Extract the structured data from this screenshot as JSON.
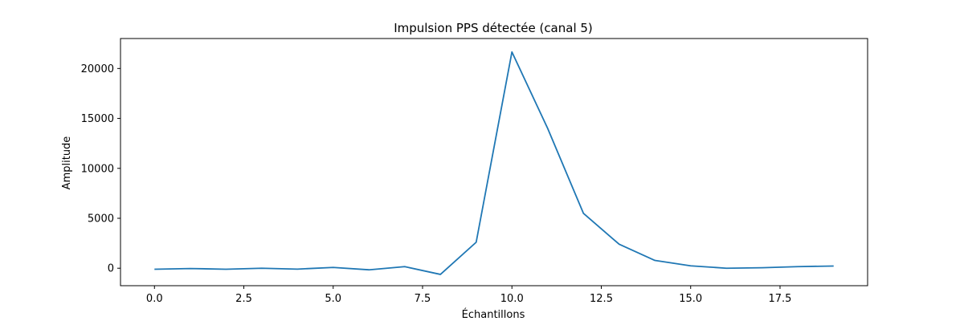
{
  "chart_data": {
    "type": "line",
    "title": "Impulsion PPS détectée (canal 5)",
    "xlabel": "Échantillons",
    "ylabel": "Amplitude",
    "xlim": [
      -0.95,
      19.95
    ],
    "ylim": [
      -1750,
      23000
    ],
    "xticks": [
      0.0,
      2.5,
      5.0,
      7.5,
      10.0,
      12.5,
      15.0,
      17.5
    ],
    "xtick_labels": [
      "0.0",
      "2.5",
      "5.0",
      "7.5",
      "10.0",
      "12.5",
      "15.0",
      "17.5"
    ],
    "yticks": [
      0,
      5000,
      10000,
      15000,
      20000
    ],
    "ytick_labels": [
      "0",
      "5000",
      "10000",
      "15000",
      "20000"
    ],
    "grid": false,
    "series": [
      {
        "color": "#1f77b4",
        "x": [
          0,
          1,
          2,
          3,
          4,
          5,
          6,
          7,
          8,
          9,
          10,
          11,
          12,
          13,
          14,
          15,
          16,
          17,
          18,
          19
        ],
        "values": [
          -100,
          -30,
          -100,
          0,
          -90,
          80,
          -160,
          160,
          -620,
          2600,
          21650,
          14000,
          5500,
          2400,
          780,
          240,
          0,
          50,
          160,
          220
        ]
      }
    ]
  }
}
